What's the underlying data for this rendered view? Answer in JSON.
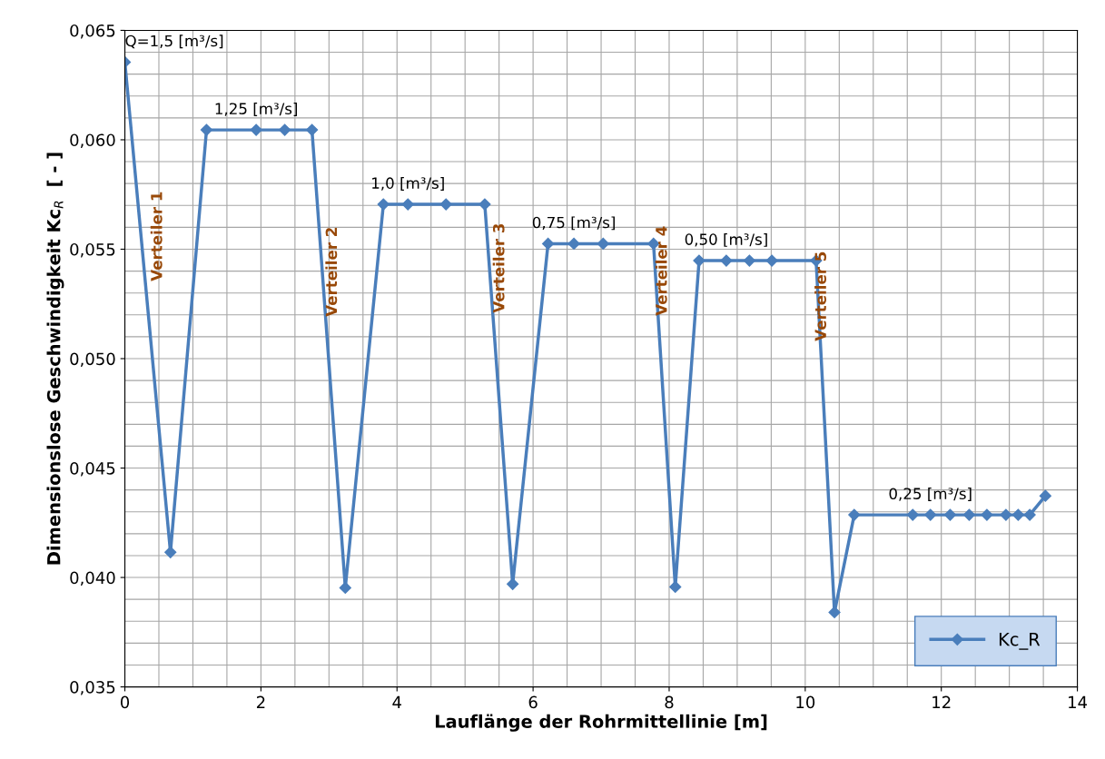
{
  "chart_data": {
    "type": "line",
    "xlabel": "Lauflänge der Rohrmittellinie [m]",
    "ylabel": "Dimensionslose Geschwindigkeit Kc$_{R}$  [ - ]",
    "series": [
      {
        "name": "Kc_R",
        "color": "#4a7ebb",
        "x": [
          0,
          0.67,
          1.2,
          1.93,
          2.35,
          2.75,
          3.24,
          3.8,
          4.16,
          4.72,
          5.29,
          5.7,
          6.22,
          6.6,
          7.03,
          7.77,
          8.09,
          8.44,
          8.84,
          9.18,
          9.51,
          10.16,
          10.43,
          10.72,
          11.58,
          11.84,
          12.13,
          12.41,
          12.67,
          12.95,
          13.13,
          13.3,
          13.53
        ],
        "values": [
          0.06355,
          0.04115,
          0.06045,
          0.06045,
          0.06045,
          0.06045,
          0.03953,
          0.05705,
          0.05705,
          0.05705,
          0.05705,
          0.0397,
          0.05525,
          0.05525,
          0.05525,
          0.05525,
          0.03957,
          0.05448,
          0.05448,
          0.05448,
          0.05448,
          0.05448,
          0.03841,
          0.04286,
          0.04286,
          0.04286,
          0.04286,
          0.04286,
          0.04286,
          0.04286,
          0.04286,
          0.04286,
          0.04373
        ]
      }
    ],
    "xlim": [
      0,
      14
    ],
    "xticks": [
      0,
      2,
      4,
      6,
      8,
      10,
      12,
      14
    ],
    "ylim": [
      0.035,
      0.065
    ],
    "yticks": [
      {
        "value": 0.035,
        "label": "0,035"
      },
      {
        "value": 0.04,
        "label": "0,040"
      },
      {
        "value": 0.045,
        "label": "0,045"
      },
      {
        "value": 0.05,
        "label": "0,050"
      },
      {
        "value": 0.055,
        "label": "0,055"
      },
      {
        "value": 0.06,
        "label": "0,060"
      },
      {
        "value": 0.065,
        "label": "0,065"
      }
    ],
    "grid": true,
    "legend": "bottom right",
    "marker": "diamond",
    "line_style": "solid",
    "annotations": [
      {
        "text": "Q=1,5 [m³/s]",
        "x": 0,
        "y": 0.06355
      },
      {
        "text": "1,25 [m³/s]",
        "x": 1.93,
        "y": 0.06045
      },
      {
        "text": "1,0 [m³/s]",
        "x": 4.16,
        "y": 0.05705
      },
      {
        "text": "0,75 [m³/s]",
        "x": 6.6,
        "y": 0.05525
      },
      {
        "text": "0,50 [m³/s]",
        "x": 8.84,
        "y": 0.05448
      },
      {
        "text": "0,25 [m³/s]",
        "x": 11.84,
        "y": 0.04286
      },
      "Verteiler 1",
      "Verteiler 2",
      "Verteiler 3",
      "Verteiler 4",
      "Verteiler 5"
    ]
  }
}
